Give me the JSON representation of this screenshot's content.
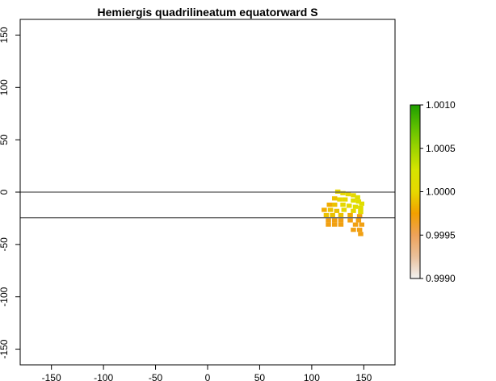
{
  "chart_data": {
    "type": "heatmap",
    "title": "Hemiergis quadrilineatum equatorward S",
    "xlabel": "",
    "ylabel": "",
    "xlim": [
      -180,
      180
    ],
    "ylim": [
      -165,
      165
    ],
    "x_ticks": [
      -150,
      -100,
      -50,
      0,
      50,
      100,
      150
    ],
    "y_ticks": [
      150,
      100,
      50,
      0,
      -50,
      -100,
      -150
    ],
    "reference_lines_y": [
      0,
      -24.5
    ],
    "legend": {
      "placement": "right",
      "min": 0.999,
      "max": 1.001,
      "ticks": [
        "1.0010",
        "1.0005",
        "1.0000",
        "0.9995",
        "0.9990"
      ],
      "tick_values": [
        1.001,
        1.0005,
        1.0,
        0.9995,
        0.999
      ],
      "colors": [
        "#F2F2F2",
        "#E9C09B",
        "#EEA25A",
        "#F2A000",
        "#E6D800",
        "#D6E400",
        "#9DD400",
        "#5DBF00",
        "#1E9E00"
      ]
    },
    "cells": [
      {
        "x": 125,
        "y": 0.5,
        "v": 1.0
      },
      {
        "x": 130,
        "y": -1,
        "v": 1.0
      },
      {
        "x": 135,
        "y": -2,
        "v": 1.0
      },
      {
        "x": 140,
        "y": -3,
        "v": 1.0
      },
      {
        "x": 144,
        "y": -5,
        "v": 1.0001
      },
      {
        "x": 122,
        "y": -6,
        "v": 0.9999
      },
      {
        "x": 127,
        "y": -7,
        "v": 1.0
      },
      {
        "x": 132,
        "y": -7,
        "v": 1.0
      },
      {
        "x": 140,
        "y": -8,
        "v": 1.0001
      },
      {
        "x": 145,
        "y": -9,
        "v": 1.0001
      },
      {
        "x": 148,
        "y": -11,
        "v": 1.0001
      },
      {
        "x": 117,
        "y": -12,
        "v": 0.9998
      },
      {
        "x": 122,
        "y": -12,
        "v": 0.9999
      },
      {
        "x": 130,
        "y": -12,
        "v": 1.0
      },
      {
        "x": 136,
        "y": -13,
        "v": 1.0
      },
      {
        "x": 142,
        "y": -14,
        "v": 1.0001
      },
      {
        "x": 147,
        "y": -15,
        "v": 1.0001
      },
      {
        "x": 112,
        "y": -17,
        "v": 0.9998
      },
      {
        "x": 118,
        "y": -17,
        "v": 0.9999
      },
      {
        "x": 124,
        "y": -18,
        "v": 0.9999
      },
      {
        "x": 131,
        "y": -17,
        "v": 1.0
      },
      {
        "x": 140,
        "y": -18,
        "v": 1.0
      },
      {
        "x": 147,
        "y": -19,
        "v": 1.0001
      },
      {
        "x": 114,
        "y": -22,
        "v": 0.9999
      },
      {
        "x": 120,
        "y": -22,
        "v": 0.9999
      },
      {
        "x": 128,
        "y": -22,
        "v": 0.9999
      },
      {
        "x": 137,
        "y": -22,
        "v": 0.9998
      },
      {
        "x": 146,
        "y": -23,
        "v": 0.9997
      },
      {
        "x": 116,
        "y": -27,
        "v": 0.9997
      },
      {
        "x": 122,
        "y": -27,
        "v": 0.9997
      },
      {
        "x": 128,
        "y": -27,
        "v": 0.9997
      },
      {
        "x": 137,
        "y": -27,
        "v": 0.9997
      },
      {
        "x": 145,
        "y": -27,
        "v": 0.9997
      },
      {
        "x": 116,
        "y": -31,
        "v": 0.9997
      },
      {
        "x": 122,
        "y": -31,
        "v": 0.9997
      },
      {
        "x": 128,
        "y": -31,
        "v": 0.9997
      },
      {
        "x": 142,
        "y": -31,
        "v": 0.9997
      },
      {
        "x": 148,
        "y": -31,
        "v": 0.9997
      },
      {
        "x": 140,
        "y": -36,
        "v": 0.9997
      },
      {
        "x": 146,
        "y": -36,
        "v": 0.9997
      },
      {
        "x": 147,
        "y": -40,
        "v": 0.9997
      }
    ]
  }
}
